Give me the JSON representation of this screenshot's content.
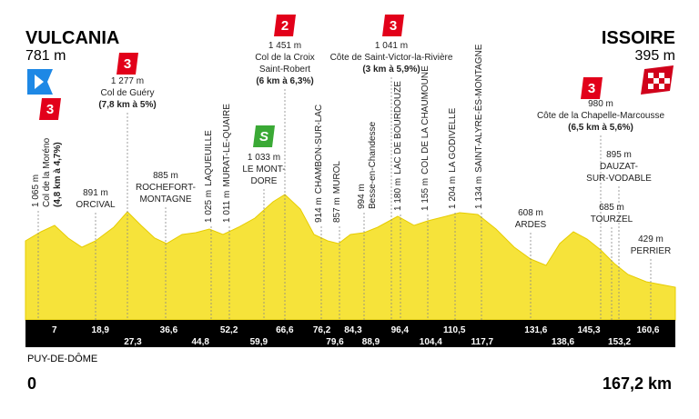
{
  "start": {
    "name": "VULCANIA",
    "altitude": "781 m"
  },
  "finish": {
    "name": "ISSOIRE",
    "altitude": "395 m"
  },
  "region": "PUY-DE-DÔME",
  "distance_start": "0",
  "distance_end": "167,2 km",
  "waypoints": [
    {
      "altitude": "1 065 m",
      "name": [
        "Col de la Moréno"
      ],
      "detail": "(4,8 km à 4,7%)",
      "category": "3"
    },
    {
      "altitude": "891 m",
      "name": [
        "ORCIVAL"
      ]
    },
    {
      "altitude": "1 277 m",
      "name": [
        "Col de Guéry"
      ],
      "detail": "(7,8 km à 5%)",
      "category": "3"
    },
    {
      "altitude": "885 m",
      "name": [
        "ROCHEFORT-",
        "MONTAGNE"
      ]
    },
    {
      "altitude": "1 025 m",
      "name": [
        "LAQUEUILLE"
      ]
    },
    {
      "altitude": "1 011 m",
      "name": [
        "MURAT-LE-QUAIRE"
      ]
    },
    {
      "altitude": "1 033 m",
      "name": [
        "LE MONT-",
        "DORE"
      ],
      "category": "S"
    },
    {
      "altitude": "1 451 m",
      "name": [
        "Col de la Croix",
        "Saint-Robert"
      ],
      "detail": "(6 km à 6,3%)",
      "category": "2"
    },
    {
      "altitude": "914 m",
      "name": [
        "CHAMBON-SUR-LAC"
      ]
    },
    {
      "altitude": "857 m",
      "name": [
        "MUROL"
      ]
    },
    {
      "altitude": "994 m",
      "name": [
        "Besse-en-Chandesse"
      ]
    },
    {
      "altitude": "1 041 m",
      "name": [
        "Côte de Saint-Victor-la-Rivière"
      ],
      "detail": "(3 km à 5,9%)",
      "category": "3"
    },
    {
      "altitude": "1 180 m",
      "name": [
        "LAC DE BOURDOUZE"
      ]
    },
    {
      "altitude": "1 155 m",
      "name": [
        "COL DE LA CHAUMOUNE"
      ]
    },
    {
      "altitude": "1 204 m",
      "name": [
        "LA GODIVELLE"
      ]
    },
    {
      "altitude": "1 134 m",
      "name": [
        "SAINT-ALYRE-ÈS-MONTAGNE"
      ]
    },
    {
      "altitude": "608 m",
      "name": [
        "ARDES"
      ]
    },
    {
      "altitude": "980 m",
      "name": [
        "Côte de la Chapelle-Marcousse"
      ],
      "detail": "(6,5 km à 5,6%)",
      "category": "3"
    },
    {
      "altitude": "895 m",
      "name": [
        "DAUZAT-",
        "SUR-VODABLE"
      ]
    },
    {
      "altitude": "685 m",
      "name": [
        "TOURZEL"
      ]
    },
    {
      "altitude": "429 m",
      "name": [
        "PERRIER"
      ]
    }
  ],
  "km_top": [
    "7",
    "18,9",
    "36,6",
    "52,2",
    "66,6",
    "76,2",
    "84,3",
    "96,4",
    "110,5",
    "131,6",
    "145,3",
    "160,6"
  ],
  "km_bottom": [
    "27,3",
    "44,8",
    "59,9",
    "79,6",
    "88,9",
    "104,4",
    "117,7",
    "138,6",
    "153,2"
  ]
}
